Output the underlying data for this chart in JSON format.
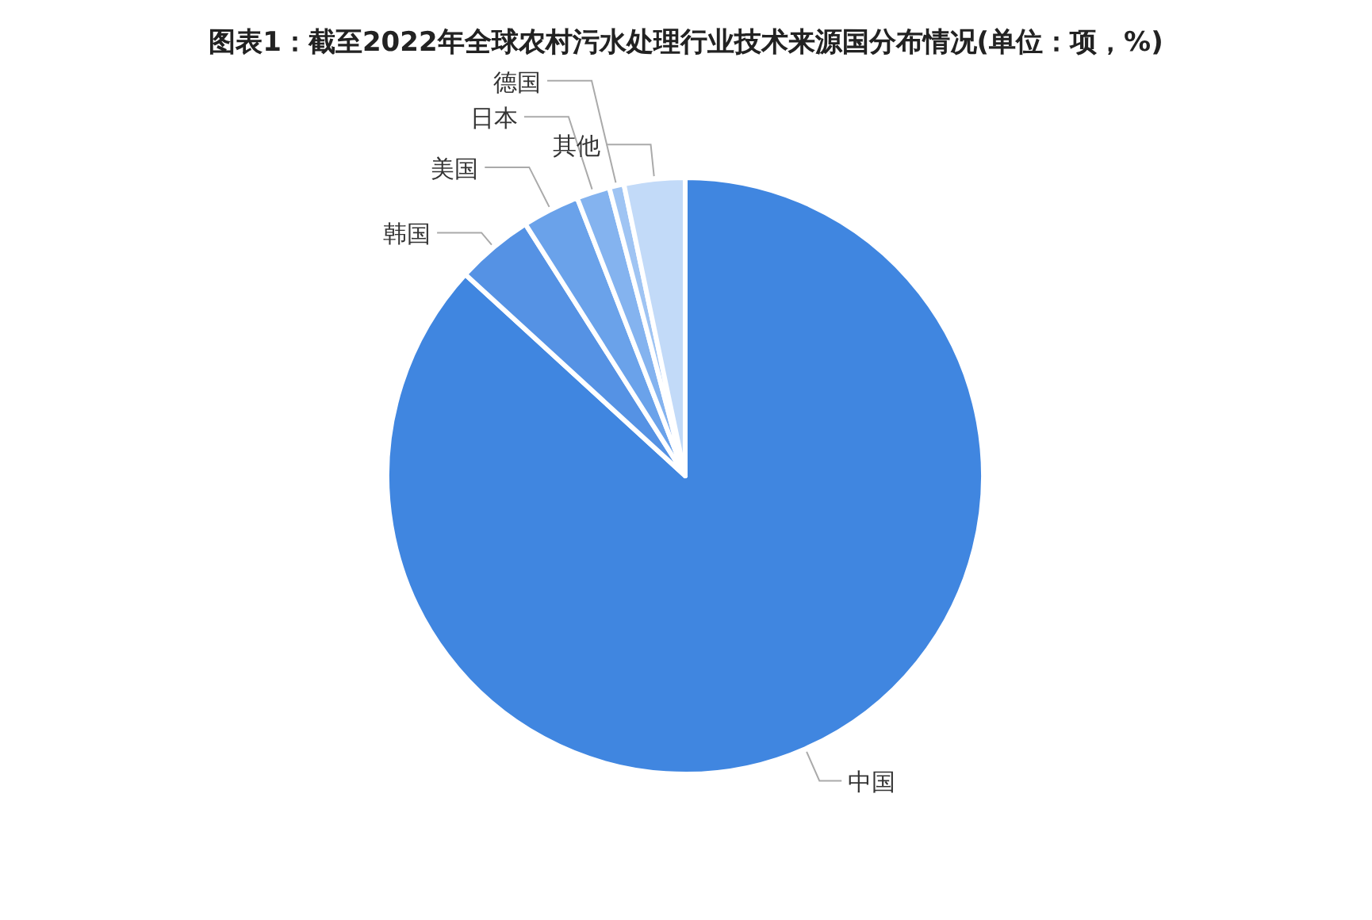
{
  "chart_data": {
    "type": "pie",
    "title": "图表1：截至2022年全球农村污水处理行业技术来源国分布情况(单位：项，%)",
    "categories": [
      "中国",
      "韩国",
      "美国",
      "日本",
      "德国",
      "其他"
    ],
    "values": [
      86.8,
      4.2,
      3.1,
      1.8,
      0.8,
      3.3
    ],
    "colors": [
      "#4086e0",
      "#5592e4",
      "#6aa2ea",
      "#84b3ef",
      "#9fc4f3",
      "#c2daf8"
    ]
  }
}
